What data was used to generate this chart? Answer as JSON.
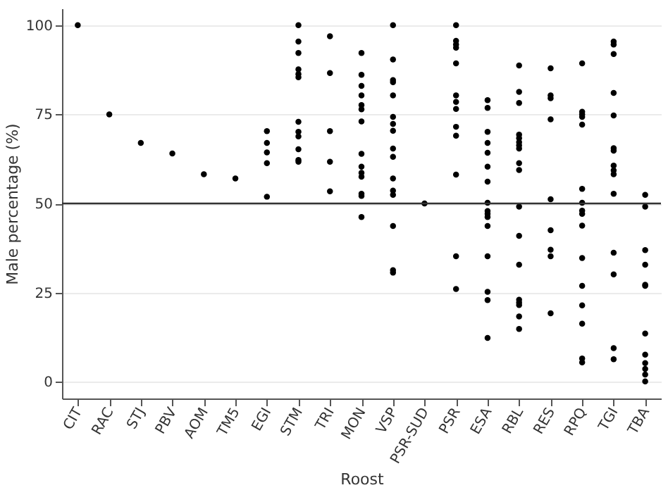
{
  "chart_data": {
    "type": "scatter",
    "xlabel": "Roost",
    "ylabel": "Male percentage (%)",
    "categories": [
      "CIT",
      "RAC",
      "STJ",
      "PBV",
      "AOM",
      "TM5",
      "EGI",
      "STM",
      "TRI",
      "MON",
      "VSP",
      "PSR-SUD",
      "PSR",
      "ESA",
      "RBL",
      "RES",
      "RPQ",
      "TGI",
      "TBA"
    ],
    "ylim": [
      -4.7,
      104.7
    ],
    "yticks": [
      0,
      25,
      50,
      75,
      100
    ],
    "grid": "y",
    "marker": "circle",
    "ref_lines": [
      {
        "axis": "y",
        "value": 50,
        "color": "#333333"
      }
    ],
    "series": [
      {
        "color": "#000000",
        "x": [
          "CIT",
          "RAC",
          "STJ",
          "PBV",
          "AOM",
          "TM5",
          "EGI",
          "EGI",
          "EGI",
          "EGI",
          "EGI",
          "STM",
          "STM",
          "STM",
          "STM",
          "STM",
          "STM",
          "STM",
          "STM",
          "STM",
          "STM",
          "STM",
          "STM",
          "TRI",
          "TRI",
          "TRI",
          "TRI",
          "TRI",
          "MON",
          "MON",
          "MON",
          "MON",
          "MON",
          "MON",
          "MON",
          "MON",
          "MON",
          "MON",
          "MON",
          "MON",
          "MON",
          "MON",
          "VSP",
          "VSP",
          "VSP",
          "VSP",
          "VSP",
          "VSP",
          "VSP",
          "VSP",
          "VSP",
          "VSP",
          "VSP",
          "VSP",
          "VSP",
          "VSP",
          "VSP",
          "VSP",
          "PSR-SUD",
          "PSR",
          "PSR",
          "PSR",
          "PSR",
          "PSR",
          "PSR",
          "PSR",
          "PSR",
          "PSR",
          "PSR",
          "PSR",
          "PSR",
          "PSR",
          "ESA",
          "ESA",
          "ESA",
          "ESA",
          "ESA",
          "ESA",
          "ESA",
          "ESA",
          "ESA",
          "ESA",
          "ESA",
          "ESA",
          "ESA",
          "ESA",
          "ESA",
          "ESA",
          "RBL",
          "RBL",
          "RBL",
          "RBL",
          "RBL",
          "RBL",
          "RBL",
          "RBL",
          "RBL",
          "RBL",
          "RBL",
          "RBL",
          "RBL",
          "RBL",
          "RBL",
          "RBL",
          "RBL",
          "RBL",
          "RES",
          "RES",
          "RES",
          "RES",
          "RES",
          "RES",
          "RES",
          "RES",
          "RES",
          "RPQ",
          "RPQ",
          "RPQ",
          "RPQ",
          "RPQ",
          "RPQ",
          "RPQ",
          "RPQ",
          "RPQ",
          "RPQ",
          "RPQ",
          "RPQ",
          "RPQ",
          "RPQ",
          "RPQ",
          "RPQ",
          "TGI",
          "TGI",
          "TGI",
          "TGI",
          "TGI",
          "TGI",
          "TGI",
          "TGI",
          "TGI",
          "TGI",
          "TGI",
          "TGI",
          "TGI",
          "TGI",
          "TGI",
          "TBA",
          "TBA",
          "TBA",
          "TBA",
          "TBA",
          "TBA",
          "TBA",
          "TBA",
          "TBA",
          "TBA",
          "TBA",
          "TBA"
        ],
        "values": [
          100,
          75,
          67,
          64,
          58.2,
          57,
          70.3,
          67,
          64.3,
          61.3,
          51.9,
          100,
          95.4,
          92.2,
          87.6,
          86.3,
          85.4,
          72.9,
          70.1,
          68.8,
          65.2,
          62.2,
          61.7,
          96.9,
          86.6,
          70.3,
          61.7,
          53.4,
          92.2,
          86.1,
          83,
          80.3,
          77.6,
          76.4,
          73,
          63.9,
          60.3,
          58.6,
          57.5,
          52.7,
          52.1,
          46.2,
          100,
          90.4,
          84.6,
          84,
          80.3,
          74.3,
          72.3,
          70.4,
          65.4,
          63.1,
          57,
          53.6,
          52.4,
          43.7,
          31.3,
          30.6,
          50,
          100,
          95.6,
          94.6,
          93.7,
          89.3,
          80.3,
          78.5,
          76.5,
          71.5,
          69,
          58.1,
          35.2,
          26,
          79,
          76.8,
          70.1,
          67,
          64.2,
          60.3,
          56.1,
          50.2,
          47.9,
          47.1,
          46.2,
          43.7,
          35.2,
          25.2,
          22.9,
          12.3,
          88.7,
          81.3,
          78.2,
          69.3,
          68.3,
          67.2,
          66.3,
          65.4,
          61.3,
          59.4,
          49.1,
          40.9,
          32.8,
          23,
          22.2,
          21.5,
          18.3,
          14.8,
          87.9,
          80.3,
          79.5,
          73.6,
          51.2,
          42.5,
          37,
          35.2,
          19.2,
          89.3,
          75.7,
          75,
          74.3,
          72.1,
          54.1,
          50.2,
          48,
          47.1,
          43.8,
          34.7,
          26.9,
          21.4,
          16.3,
          6.5,
          5.4,
          95.4,
          94.6,
          91.9,
          81,
          74.7,
          65.5,
          64.8,
          60.6,
          59.3,
          58.2,
          52.7,
          36.2,
          30.1,
          9.4,
          6.3,
          52.4,
          49.1,
          36.9,
          32.8,
          27.2,
          26.9,
          13.5,
          7.6,
          5.2,
          3.6,
          2,
          0.1
        ]
      }
    ]
  }
}
